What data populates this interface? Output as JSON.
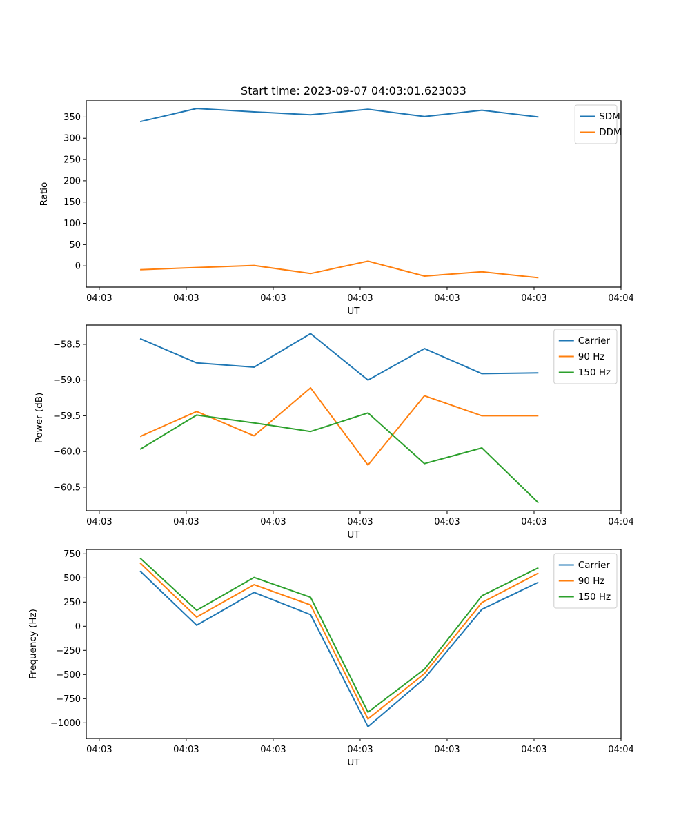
{
  "figure": {
    "title": "Start time: 2023-09-07 04:03:01.623033",
    "background": "#ffffff",
    "axis_color": "#000000"
  },
  "chart_data": [
    {
      "type": "line",
      "title": "Start time: 2023-09-07 04:03:01.623033",
      "xlabel": "UT",
      "ylabel": "Ratio",
      "xlim": [
        -1.5,
        60
      ],
      "ylim": [
        -50,
        388
      ],
      "grid": false,
      "legend_position": "upper right",
      "x_tick_values": [
        0,
        10,
        20,
        30,
        40,
        50,
        60
      ],
      "x_tick_labels": [
        "04:03",
        "04:03",
        "04:03",
        "04:03",
        "04:03",
        "04:03",
        "04:04"
      ],
      "y_tick_values": [
        0,
        50,
        100,
        150,
        200,
        250,
        300,
        350
      ],
      "y_tick_labels": [
        "0",
        "50",
        "100",
        "150",
        "200",
        "250",
        "300",
        "350"
      ],
      "x": [
        4.7,
        11.2,
        17.8,
        24.3,
        30.9,
        37.4,
        44.0,
        50.5
      ],
      "series": [
        {
          "name": "SDM",
          "color": "#1f77b4",
          "values": [
            339,
            370,
            362,
            355,
            368,
            351,
            366,
            350
          ]
        },
        {
          "name": "DDM",
          "color": "#ff7f0e",
          "values": [
            -9,
            -4,
            1,
            -18,
            11,
            -24,
            -14,
            -28
          ]
        }
      ]
    },
    {
      "type": "line",
      "title": "",
      "xlabel": "UT",
      "ylabel": "Power (dB)",
      "xlim": [
        -1.5,
        60
      ],
      "ylim": [
        -60.83,
        -58.23
      ],
      "grid": false,
      "legend_position": "upper right",
      "x_tick_values": [
        0,
        10,
        20,
        30,
        40,
        50,
        60
      ],
      "x_tick_labels": [
        "04:03",
        "04:03",
        "04:03",
        "04:03",
        "04:03",
        "04:03",
        "04:04"
      ],
      "y_tick_values": [
        -58.5,
        -59.0,
        -59.5,
        -60.0,
        -60.5
      ],
      "y_tick_labels": [
        "−58.5",
        "−59.0",
        "−59.5",
        "−60.0",
        "−60.5"
      ],
      "x": [
        4.7,
        11.2,
        17.8,
        24.3,
        30.9,
        37.4,
        44.0,
        50.5
      ],
      "series": [
        {
          "name": "Carrier",
          "color": "#1f77b4",
          "values": [
            -58.42,
            -58.76,
            -58.82,
            -58.35,
            -59.0,
            -58.56,
            -58.91,
            -58.9
          ]
        },
        {
          "name": "90 Hz",
          "color": "#ff7f0e",
          "values": [
            -59.79,
            -59.44,
            -59.78,
            -59.11,
            -60.19,
            -59.22,
            -59.5,
            -59.5
          ]
        },
        {
          "name": "150 Hz",
          "color": "#2ca02c",
          "values": [
            -59.97,
            -59.49,
            -59.6,
            -59.72,
            -59.46,
            -60.17,
            -59.95,
            -60.72
          ]
        }
      ]
    },
    {
      "type": "line",
      "title": "",
      "xlabel": "UT",
      "ylabel": "Frequency (Hz)",
      "xlim": [
        -1.5,
        60
      ],
      "ylim": [
        -1162,
        795
      ],
      "grid": false,
      "legend_position": "upper right",
      "x_tick_values": [
        0,
        10,
        20,
        30,
        40,
        50,
        60
      ],
      "x_tick_labels": [
        "04:03",
        "04:03",
        "04:03",
        "04:03",
        "04:03",
        "04:03",
        "04:04"
      ],
      "y_tick_values": [
        750,
        500,
        250,
        0,
        -250,
        -500,
        -750,
        -1000
      ],
      "y_tick_labels": [
        "750",
        "500",
        "250",
        "0",
        "−250",
        "−500",
        "−750",
        "−1000"
      ],
      "x": [
        4.7,
        11.2,
        17.8,
        24.3,
        30.9,
        37.4,
        44.0,
        50.5
      ],
      "series": [
        {
          "name": "Carrier",
          "color": "#1f77b4",
          "values": [
            570,
            10,
            350,
            120,
            -1040,
            -540,
            175,
            455
          ]
        },
        {
          "name": "90 Hz",
          "color": "#ff7f0e",
          "values": [
            655,
            95,
            430,
            220,
            -960,
            -490,
            245,
            550
          ]
        },
        {
          "name": "150 Hz",
          "color": "#2ca02c",
          "values": [
            705,
            165,
            505,
            300,
            -890,
            -445,
            315,
            605
          ]
        }
      ]
    }
  ]
}
